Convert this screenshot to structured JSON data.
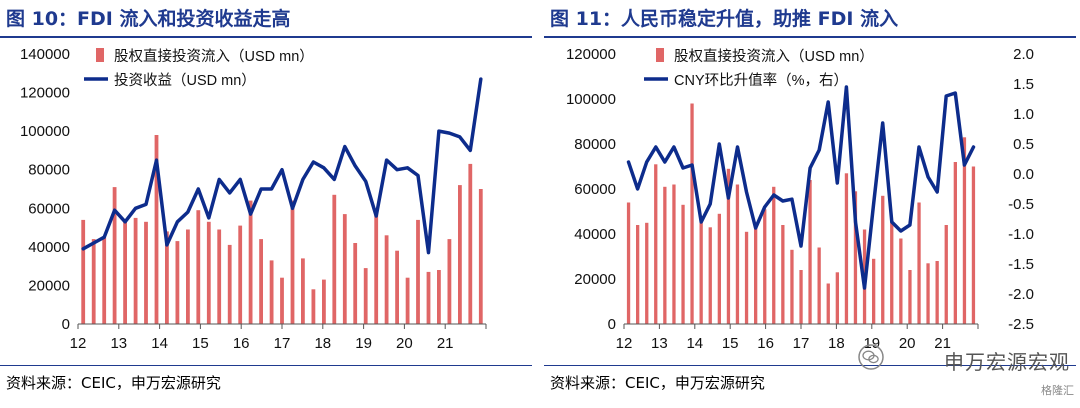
{
  "left": {
    "title": "图 10：FDI 流入和投资收益走高",
    "source": "资料来源：CEIC，申万宏源研究"
  },
  "right": {
    "title": "图 11：人民币稳定升值，助推 FDI 流入",
    "source": "资料来源：CEIC，申万宏源研究"
  },
  "watermark": {
    "main": "申万宏源宏观",
    "sub": "格隆汇",
    "icon": "wechat-icon"
  },
  "colors": {
    "bar": "#e06666",
    "line": "#0d2c8c",
    "title": "#1f3a8f"
  },
  "chart_data": [
    {
      "type": "bar",
      "title": "图 10：FDI 流入和投资收益走高",
      "xlabel": "",
      "ylabel": "",
      "x_tick_labels": [
        "12",
        "13",
        "14",
        "15",
        "16",
        "17",
        "18",
        "19",
        "20",
        "21"
      ],
      "ylim": [
        0,
        140000
      ],
      "y_ticks": [
        0,
        20000,
        40000,
        60000,
        80000,
        100000,
        120000,
        140000
      ],
      "legend_position": "top-left",
      "series": [
        {
          "name": "股权直接投资流入（USD mn）",
          "kind": "bar",
          "values": [
            54000,
            44000,
            45000,
            71000,
            54000,
            55000,
            53000,
            98000,
            48000,
            43000,
            49000,
            59000,
            53000,
            49000,
            41000,
            51000,
            64000,
            44000,
            33000,
            24000,
            64000,
            34000,
            18000,
            23000,
            67000,
            57000,
            42000,
            29000,
            57000,
            46000,
            38000,
            24000,
            54000,
            27000,
            28000,
            44000,
            72000,
            83000,
            70000
          ]
        },
        {
          "name": "投资收益（USD mn）",
          "kind": "line",
          "values": [
            39000,
            42000,
            45000,
            59000,
            53000,
            60000,
            62000,
            85000,
            41000,
            53000,
            58000,
            70000,
            55000,
            75000,
            68000,
            75000,
            57000,
            70000,
            70000,
            80000,
            60000,
            75000,
            84000,
            81000,
            75000,
            92000,
            82000,
            74000,
            56000,
            85000,
            80000,
            81000,
            77000,
            37000,
            100000,
            99000,
            97000,
            90000,
            127000
          ]
        }
      ]
    },
    {
      "type": "bar",
      "title": "图 11：人民币稳定升值，助推 FDI 流入",
      "xlabel": "",
      "ylabel": "",
      "x_tick_labels": [
        "12",
        "13",
        "14",
        "15",
        "16",
        "17",
        "18",
        "19",
        "20",
        "21"
      ],
      "ylim": [
        0,
        120000
      ],
      "y_ticks": [
        0,
        20000,
        40000,
        60000,
        80000,
        100000,
        120000
      ],
      "y2lim": [
        -2.5,
        2.0
      ],
      "y2_ticks": [
        "2.0",
        "1.5",
        "1.0",
        "0.5",
        "0.0",
        "-0.5",
        "-1.0",
        "-1.5",
        "-2.0",
        "-2.5"
      ],
      "legend_position": "top-left",
      "series": [
        {
          "name": "股权直接投资流入（USD mn）",
          "kind": "bar",
          "axis": "left",
          "values": [
            54000,
            44000,
            45000,
            71000,
            61000,
            62000,
            53000,
            98000,
            48000,
            43000,
            49000,
            69000,
            62000,
            41000,
            44000,
            51000,
            61000,
            44000,
            33000,
            24000,
            64000,
            34000,
            18000,
            23000,
            67000,
            59000,
            42000,
            29000,
            57000,
            46000,
            38000,
            24000,
            54000,
            27000,
            28000,
            44000,
            72000,
            83000,
            70000
          ]
        },
        {
          "name": "CNY环比升值率（%，右）",
          "kind": "line",
          "axis": "right",
          "values": [
            0.2,
            -0.25,
            0.2,
            0.45,
            0.2,
            0.45,
            0.1,
            0.15,
            -0.8,
            -0.5,
            0.5,
            -0.4,
            0.45,
            -0.3,
            -0.9,
            -0.55,
            -0.35,
            -0.45,
            -0.42,
            -1.2,
            0.1,
            0.4,
            1.2,
            -0.15,
            1.45,
            -0.8,
            -1.9,
            -0.5,
            0.85,
            -0.8,
            -0.95,
            -0.85,
            0.45,
            -0.05,
            -0.3,
            1.3,
            1.35,
            0.15,
            0.45
          ]
        }
      ]
    }
  ]
}
